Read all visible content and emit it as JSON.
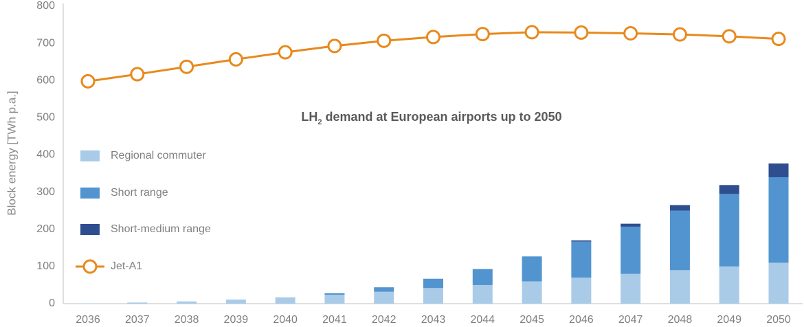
{
  "chart_data": {
    "type": "bar",
    "title_prefix": "LH",
    "title_subscript": "2",
    "title_rest": " demand at European airports up to 2050",
    "ylabel": "Block energy [TWh p.a.]",
    "xlabel": "",
    "ylim": [
      0,
      800
    ],
    "yticks": [
      "0",
      "100",
      "200",
      "300",
      "400",
      "500",
      "600",
      "700",
      "800"
    ],
    "categories": [
      "2036",
      "2037",
      "2038",
      "2039",
      "2040",
      "2041",
      "2042",
      "2043",
      "2044",
      "2045",
      "2046",
      "2047",
      "2048",
      "2049",
      "2050"
    ],
    "series": [
      {
        "name": "Regional commuter",
        "kind": "bar",
        "color": "#a9cbe8",
        "values": [
          1,
          3,
          6,
          11,
          17,
          24,
          32,
          42,
          50,
          60,
          70,
          80,
          90,
          100,
          110
        ]
      },
      {
        "name": "Short range",
        "kind": "bar",
        "color": "#5294cf",
        "values": [
          0,
          0,
          0,
          0,
          0,
          4,
          12,
          25,
          43,
          67,
          97,
          127,
          160,
          195,
          230
        ]
      },
      {
        "name": "Short-medium range",
        "kind": "bar",
        "color": "#2e4e8f",
        "values": [
          0,
          0,
          0,
          0,
          0,
          0,
          0,
          0,
          0,
          0,
          3,
          8,
          15,
          24,
          37
        ]
      },
      {
        "name": "Jet-A1",
        "kind": "line",
        "color": "#e8891c",
        "values": [
          598,
          617,
          637,
          657,
          676,
          693,
          707,
          717,
          725,
          730,
          729,
          727,
          724,
          719,
          712
        ]
      }
    ],
    "legend_position": "left",
    "grid": false
  }
}
